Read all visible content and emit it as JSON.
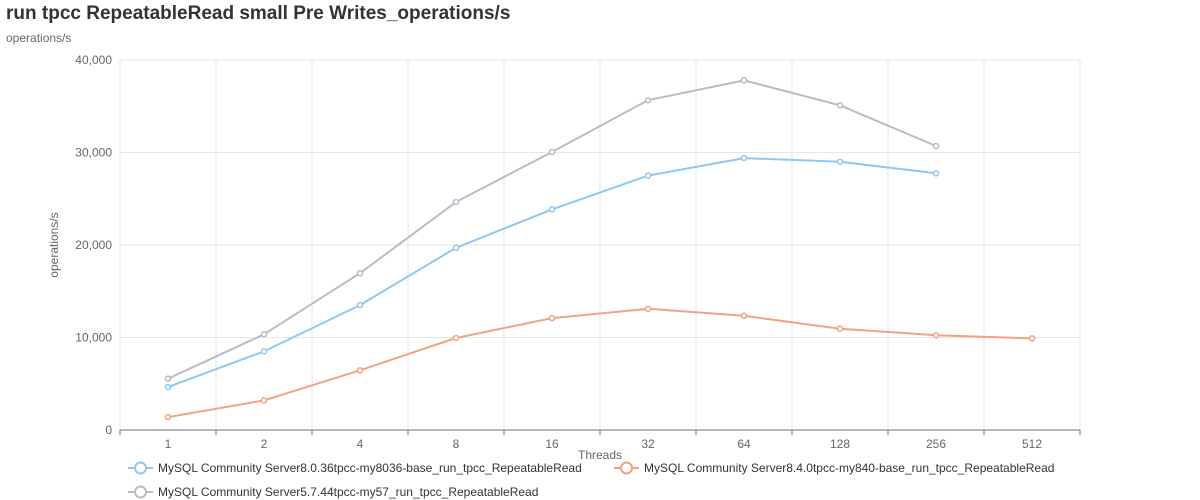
{
  "chart_data": {
    "type": "line",
    "title": "run tpcc RepeatableRead small Pre Writes_operations/s",
    "subtitle": "operations/s",
    "xlabel": "Threads",
    "ylabel": "operations/s",
    "categories": [
      "1",
      "2",
      "4",
      "8",
      "16",
      "32",
      "64",
      "128",
      "256",
      "512"
    ],
    "ylim": [
      0,
      40000
    ],
    "yticks": [
      0,
      10000,
      20000,
      30000,
      40000
    ],
    "ytick_labels": [
      "0",
      "10,000",
      "20,000",
      "30,000",
      "40,000"
    ],
    "grid": true,
    "legend_position": "bottom-left",
    "series": [
      {
        "name": "MySQL Community Server8.0.36tpcc-my8036-base_run_tpcc_RepeatableRead",
        "color": "#91c7f2",
        "values": [
          4650,
          8500,
          13500,
          19700,
          23850,
          27500,
          29400,
          29000,
          27750,
          null
        ]
      },
      {
        "name": "MySQL Community Server8.4.0tpcc-my840-base_run_tpcc_RepeatableRead",
        "color": "#f4a284",
        "values": [
          1400,
          3200,
          6450,
          9950,
          12100,
          13100,
          12350,
          10950,
          10250,
          9900
        ]
      },
      {
        "name": "MySQL Community Server5.7.44tpcc-my57_run_tpcc_RepeatableRead",
        "color": "#babbc9",
        "values": [
          5550,
          10350,
          16950,
          24650,
          30050,
          35650,
          37800,
          35100,
          30700,
          null
        ]
      }
    ]
  }
}
